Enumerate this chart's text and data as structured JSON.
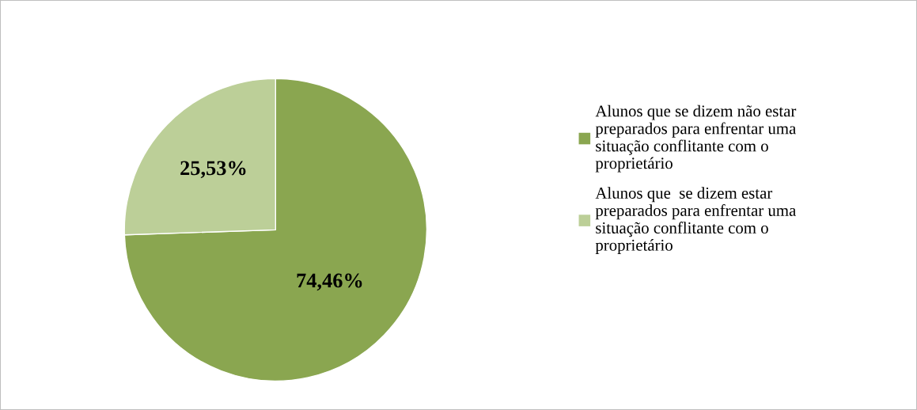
{
  "chart_data": {
    "type": "pie",
    "categories": [
      "Alunos que se dizem não estar\npreparados para enfrentar uma\nsituação conflitante com o\nproprietário",
      "Alunos que  se dizem estar\npreparados para enfrentar uma\nsituação conflitante com o\nproprietário"
    ],
    "values": [
      74.46,
      25.53
    ],
    "colors": [
      "#8aa650",
      "#bccf98"
    ],
    "value_labels": [
      "74,46%",
      "25,53%"
    ],
    "legend": "right"
  }
}
